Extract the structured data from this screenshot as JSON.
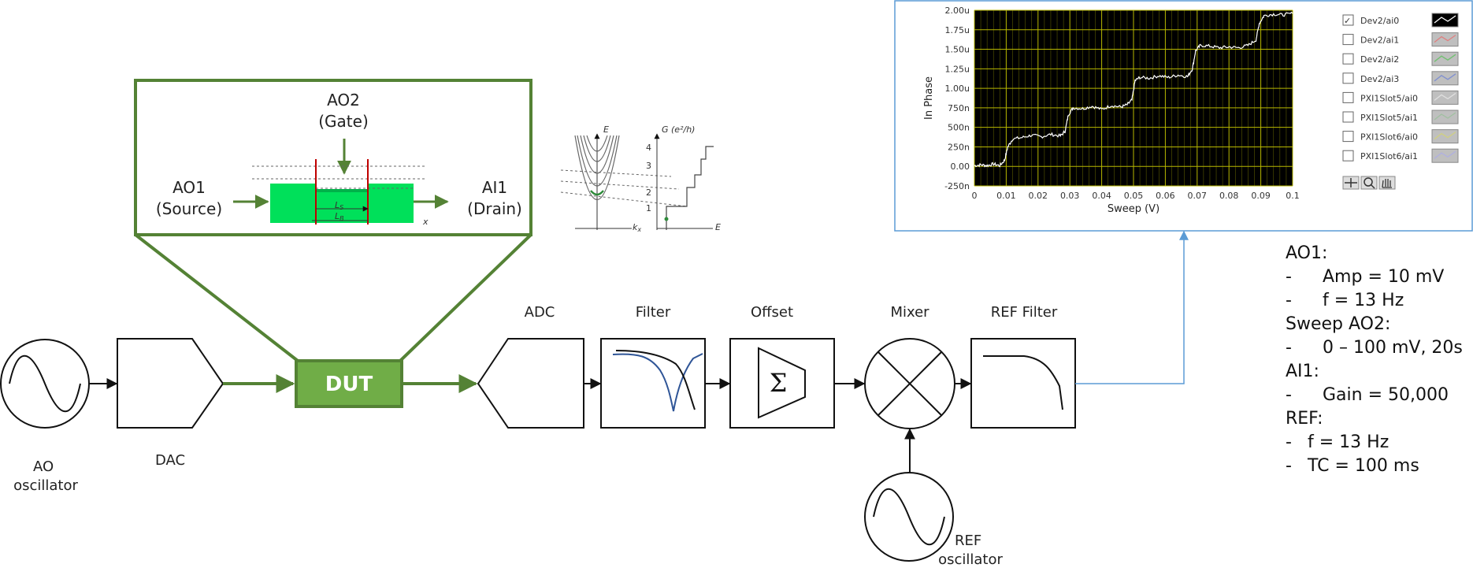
{
  "blocks": {
    "ao_oscillator": "AO\noscillator",
    "dac": "DAC",
    "dut": "DUT",
    "adc": "ADC",
    "filter": "Filter",
    "offset": "Offset",
    "mixer": "Mixer",
    "ref_filter": "REF Filter",
    "ref_oscillator": "REF\noscillator"
  },
  "device_inset": {
    "ao2": "AO2",
    "gate": "(Gate)",
    "ao1": "AO1",
    "source": "(Source)",
    "ai1": "AI1",
    "drain": "(Drain)",
    "ls": "L",
    "ls_sub": "S",
    "lb": "L",
    "lb_sub": "B",
    "x_axis": "x"
  },
  "band_inset": {
    "e_axis": "E",
    "g_axis": "G (e²/h)",
    "kx_axis": "k",
    "kx_sub": "x",
    "e_axis2": "E",
    "g_ticks": [
      "1",
      "2",
      "3",
      "4"
    ]
  },
  "legend": {
    "channels": [
      {
        "name": "Dev2/ai0",
        "checked": true
      },
      {
        "name": "Dev2/ai1",
        "checked": false
      },
      {
        "name": "Dev2/ai2",
        "checked": false
      },
      {
        "name": "Dev2/ai3",
        "checked": false
      },
      {
        "name": "PXI1Slot5/ai0",
        "checked": false
      },
      {
        "name": "PXI1Slot5/ai1",
        "checked": false
      },
      {
        "name": "PXI1Slot6/ai0",
        "checked": false
      },
      {
        "name": "PXI1Slot6/ai1",
        "checked": false
      }
    ],
    "checkmark": "✓"
  },
  "notes": {
    "lines": [
      {
        "indent": 0,
        "text": "AO1:"
      },
      {
        "indent": 1,
        "bullet": "-",
        "text": "Amp = 10 mV"
      },
      {
        "indent": 1,
        "bullet": "-",
        "text": "f = 13 Hz"
      },
      {
        "indent": 0,
        "text": "Sweep AO2:"
      },
      {
        "indent": 1,
        "bullet": "-",
        "text": "0 – 100 mV, 20s"
      },
      {
        "indent": 0,
        "text": "AI1:"
      },
      {
        "indent": 1,
        "bullet": "-",
        "text": "Gain = 50,000"
      },
      {
        "indent": 0,
        "text": "REF:"
      },
      {
        "indent": 2,
        "bullet": "-",
        "text": "f = 13 Hz"
      },
      {
        "indent": 2,
        "bullet": "-",
        "text": "TC = 100 ms"
      }
    ]
  },
  "chart_data": {
    "type": "line",
    "title": "",
    "xlabel": "Sweep (V)",
    "ylabel": "In Phase",
    "xlim": [
      0,
      0.1
    ],
    "ylim": [
      -2.5e-07,
      2e-06
    ],
    "x_ticks": [
      "0",
      "0.01",
      "0.02",
      "0.03",
      "0.04",
      "0.05",
      "0.06",
      "0.07",
      "0.08",
      "0.09",
      "0.1"
    ],
    "y_ticks": [
      "-250n",
      "0.00",
      "250n",
      "500n",
      "750n",
      "1.00u",
      "1.25u",
      "1.50u",
      "1.75u",
      "2.00u"
    ],
    "grid": true,
    "legend": "right",
    "series": [
      {
        "name": "Dev2/ai0",
        "color": "#ffffff",
        "x": [
          0,
          0.002,
          0.004,
          0.006,
          0.008,
          0.0095,
          0.0105,
          0.012,
          0.015,
          0.018,
          0.021,
          0.024,
          0.027,
          0.0285,
          0.0295,
          0.031,
          0.034,
          0.037,
          0.04,
          0.043,
          0.046,
          0.048,
          0.0495,
          0.0505,
          0.052,
          0.055,
          0.058,
          0.061,
          0.064,
          0.067,
          0.0685,
          0.0695,
          0.071,
          0.074,
          0.077,
          0.08,
          0.083,
          0.086,
          0.0885,
          0.0895,
          0.091,
          0.094,
          0.097,
          0.1
        ],
        "values": [
          1e-08,
          2e-08,
          1e-08,
          3e-08,
          1e-08,
          8e-08,
          2.5e-07,
          3.5e-07,
          3.7e-07,
          4e-07,
          3.8e-07,
          4.1e-07,
          3.9e-07,
          4.5e-07,
          6.6e-07,
          7.5e-07,
          7.4e-07,
          7.7e-07,
          7.3e-07,
          7.8e-07,
          7.6e-07,
          7.9e-07,
          8.5e-07,
          1.1e-06,
          1.14e-06,
          1.13e-06,
          1.16e-06,
          1.14e-06,
          1.17e-06,
          1.15e-06,
          1.25e-06,
          1.48e-06,
          1.55e-06,
          1.54e-06,
          1.52e-06,
          1.53e-06,
          1.52e-06,
          1.55e-06,
          1.62e-06,
          1.83e-06,
          1.93e-06,
          1.95e-06,
          1.94e-06,
          1.96e-06
        ]
      }
    ]
  }
}
